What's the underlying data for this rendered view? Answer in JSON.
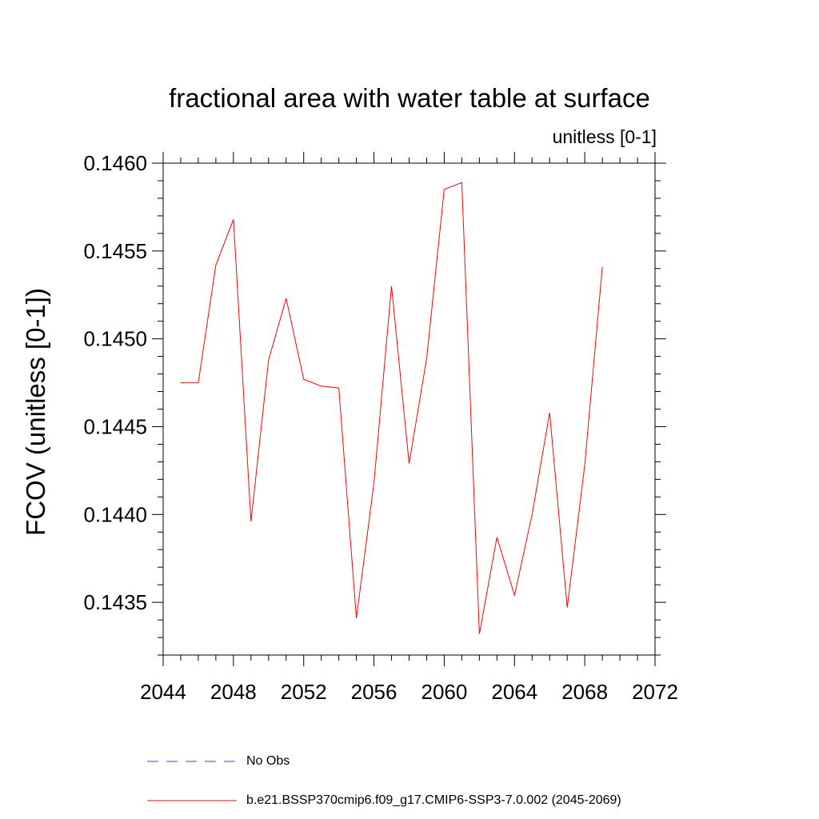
{
  "chart_data": {
    "type": "line",
    "title": "fractional area with water table at surface",
    "units_label": "unitless [0-1]",
    "xlabel": "",
    "ylabel": "FCOV  (unitless [0-1])",
    "xlim": [
      2044,
      2072
    ],
    "ylim": [
      0.1432,
      0.146
    ],
    "x_ticks": [
      2044,
      2048,
      2052,
      2056,
      2060,
      2064,
      2068,
      2072
    ],
    "x_tick_labels": [
      "2044",
      "2048",
      "2052",
      "2056",
      "2060",
      "2064",
      "2068",
      "2072"
    ],
    "y_ticks": [
      0.1435,
      0.144,
      0.1445,
      0.145,
      0.1455,
      0.146
    ],
    "y_tick_labels": [
      "0.1435",
      "0.1440",
      "0.1445",
      "0.1450",
      "0.1455",
      "0.1460"
    ],
    "grid": false,
    "legend_position": "bottom",
    "series": [
      {
        "name": "b.e21.BSSP370cmip6.f09_g17.CMIP6-SSP3-7.0.002 (2045-2069)",
        "color": "#ff0000",
        "style": "solid",
        "x": [
          2045,
          2046,
          2047,
          2048,
          2049,
          2050,
          2051,
          2052,
          2053,
          2054,
          2055,
          2056,
          2057,
          2058,
          2059,
          2060,
          2061,
          2062,
          2063,
          2064,
          2065,
          2066,
          2067,
          2068,
          2069
        ],
        "values": [
          0.14475,
          0.14475,
          0.14542,
          0.14568,
          0.14396,
          0.14488,
          0.14523,
          0.14477,
          0.14473,
          0.14472,
          0.14341,
          0.14418,
          0.1453,
          0.14429,
          0.14489,
          0.14585,
          0.14589,
          0.14332,
          0.14387,
          0.14354,
          0.144,
          0.14458,
          0.14347,
          0.14428,
          0.14541
        ]
      },
      {
        "name": "No Obs",
        "color": "#4040c0",
        "style": "dashed",
        "x": [],
        "values": []
      }
    ]
  }
}
